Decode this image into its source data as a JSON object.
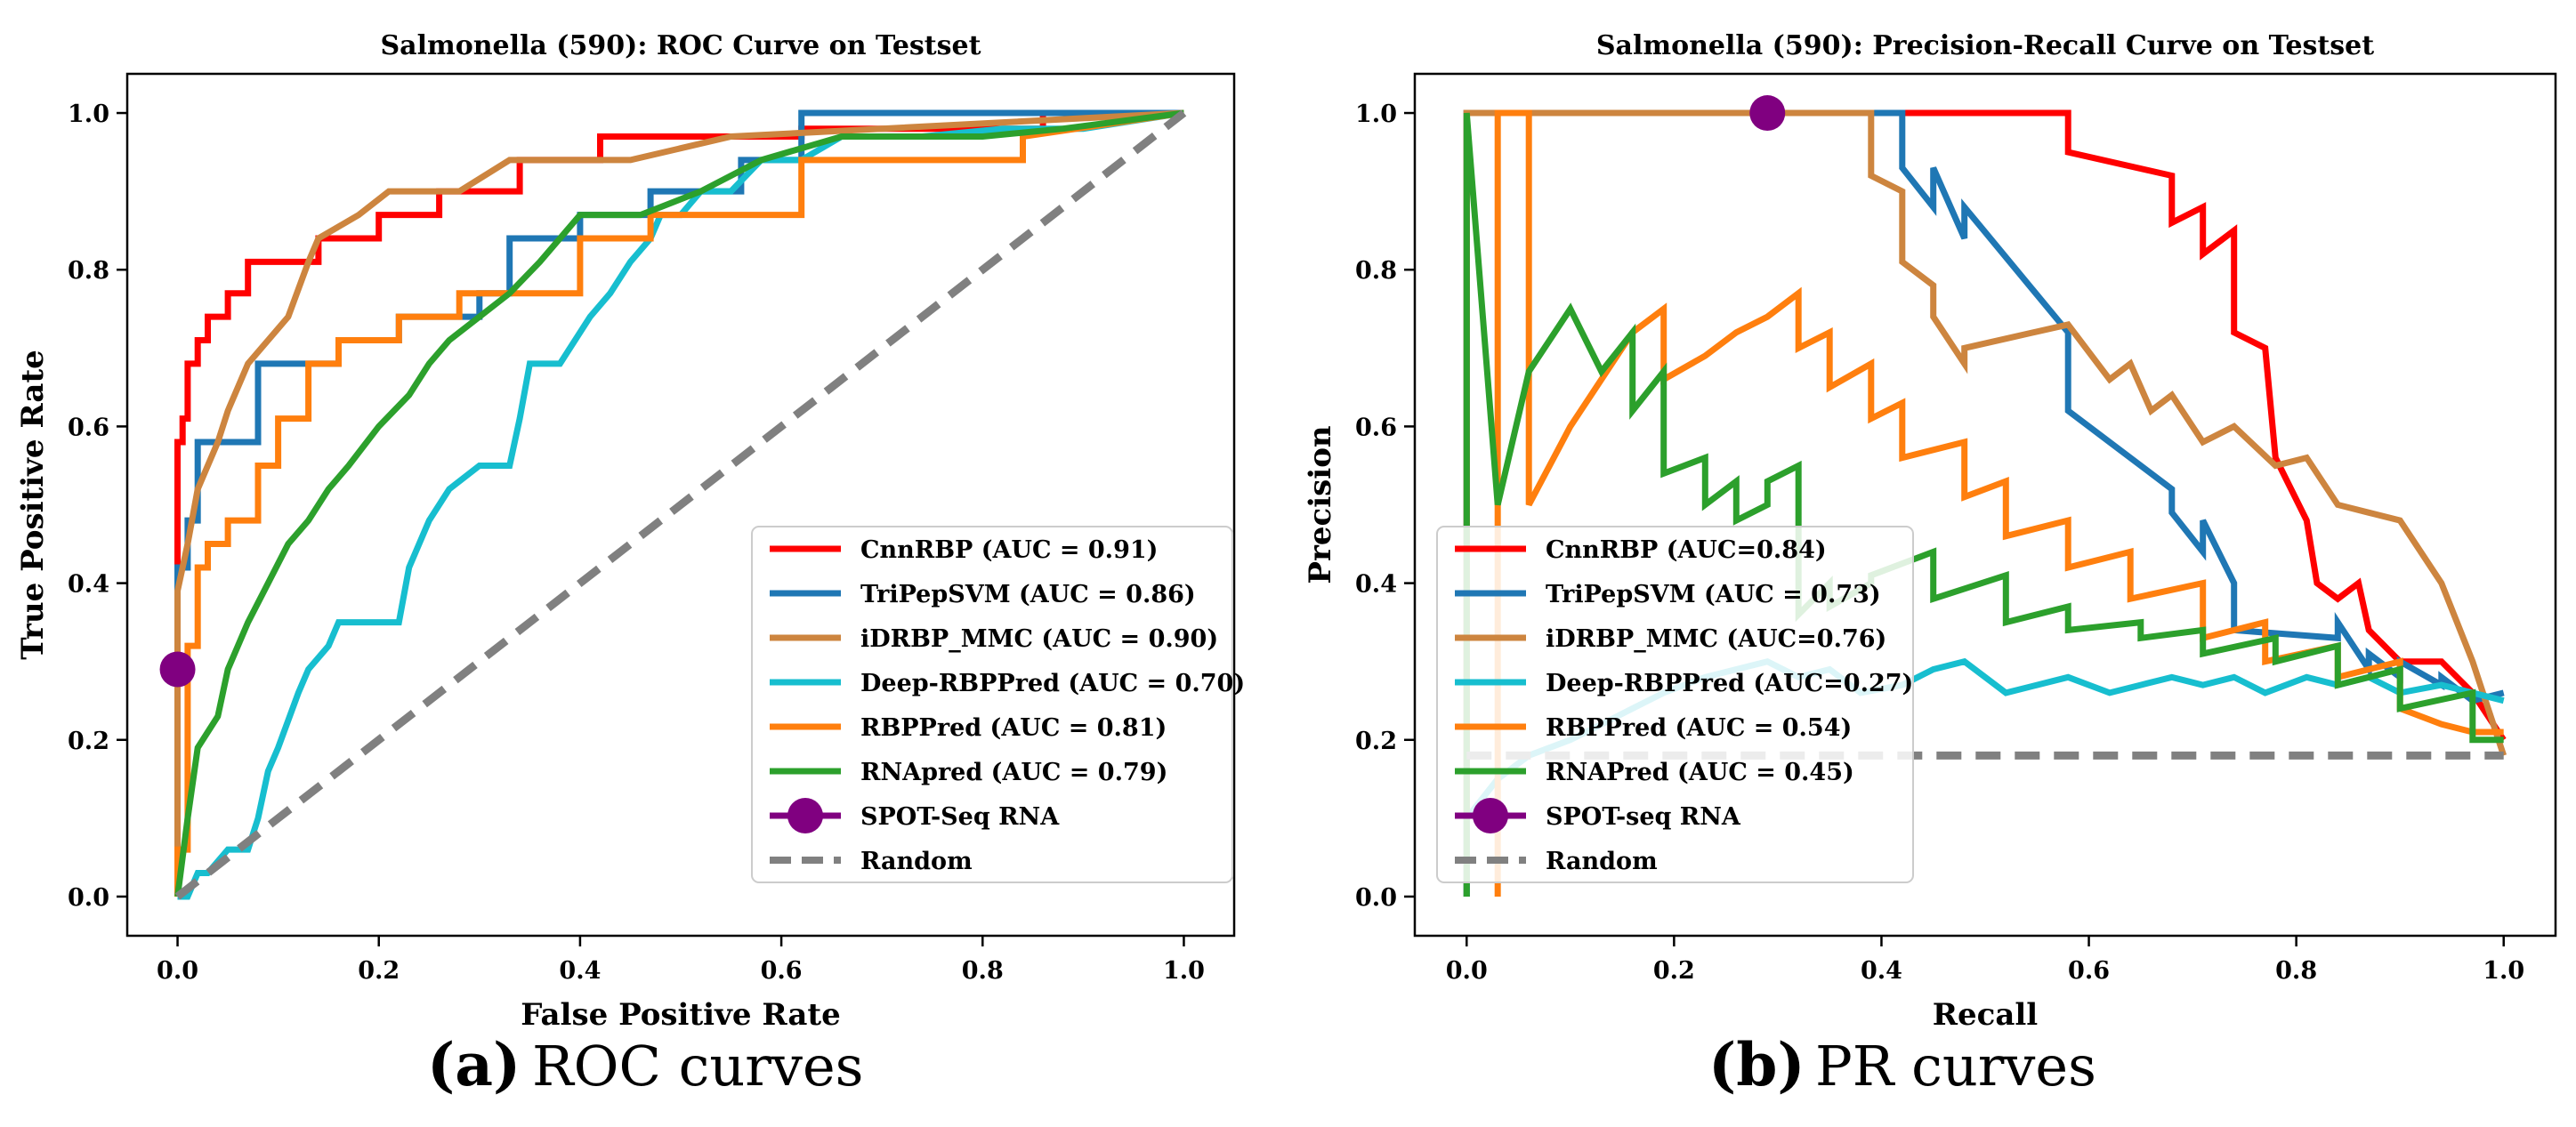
{
  "chart_data": [
    {
      "type": "line",
      "title": "Salmonella (590): ROC Curve on Testset",
      "xlabel": "False Positive Rate",
      "ylabel": "True Positive Rate",
      "xlim": [
        -0.05,
        1.05
      ],
      "ylim": [
        -0.05,
        1.05
      ],
      "xticks": [
        "0.0",
        "0.2",
        "0.4",
        "0.6",
        "0.8",
        "1.0"
      ],
      "yticks": [
        "0.0",
        "0.2",
        "0.4",
        "0.6",
        "0.8",
        "1.0"
      ],
      "legend_position": "lower-right",
      "series": [
        {
          "name": "CnnRBP (AUC = 0.91)",
          "color": "#ff0000",
          "style": "step",
          "x": [
            0,
            0,
            0.005,
            0.005,
            0.01,
            0.01,
            0.02,
            0.02,
            0.03,
            0.03,
            0.05,
            0.05,
            0.07,
            0.07,
            0.14,
            0.14,
            0.2,
            0.2,
            0.26,
            0.26,
            0.34,
            0.34,
            0.42,
            0.42,
            0.62,
            0.62,
            0.86,
            0.86,
            1.0
          ],
          "y": [
            0,
            0.58,
            0.58,
            0.61,
            0.61,
            0.68,
            0.68,
            0.71,
            0.71,
            0.74,
            0.74,
            0.77,
            0.77,
            0.81,
            0.81,
            0.84,
            0.84,
            0.87,
            0.87,
            0.9,
            0.9,
            0.94,
            0.94,
            0.97,
            0.97,
            0.98,
            0.98,
            1.0,
            1.0
          ]
        },
        {
          "name": "TriPepSVM (AUC = 0.86)",
          "color": "#1f77b4",
          "style": "step",
          "x": [
            0,
            0,
            0.01,
            0.01,
            0.02,
            0.02,
            0.08,
            0.08,
            0.16,
            0.16,
            0.22,
            0.22,
            0.3,
            0.3,
            0.33,
            0.33,
            0.4,
            0.4,
            0.47,
            0.47,
            0.56,
            0.56,
            0.62,
            0.62,
            1.0
          ],
          "y": [
            0,
            0.42,
            0.42,
            0.48,
            0.48,
            0.58,
            0.58,
            0.68,
            0.68,
            0.71,
            0.71,
            0.74,
            0.74,
            0.77,
            0.77,
            0.84,
            0.84,
            0.87,
            0.87,
            0.9,
            0.9,
            0.94,
            0.94,
            1.0,
            1.0
          ]
        },
        {
          "name": "iDRBP_MMC (AUC = 0.90)",
          "color": "#cd853f",
          "style": "line",
          "x": [
            0,
            0,
            0.01,
            0.02,
            0.04,
            0.05,
            0.07,
            0.09,
            0.11,
            0.13,
            0.14,
            0.18,
            0.21,
            0.28,
            0.33,
            0.45,
            0.55,
            0.7,
            1.0
          ],
          "y": [
            0,
            0.39,
            0.45,
            0.52,
            0.58,
            0.62,
            0.68,
            0.71,
            0.74,
            0.81,
            0.84,
            0.87,
            0.9,
            0.9,
            0.94,
            0.94,
            0.97,
            0.98,
            1.0
          ]
        },
        {
          "name": "Deep-RBPPred (AUC = 0.70)",
          "color": "#17becf",
          "style": "line",
          "x": [
            0,
            0.01,
            0.02,
            0.03,
            0.05,
            0.07,
            0.08,
            0.09,
            0.1,
            0.12,
            0.13,
            0.15,
            0.16,
            0.18,
            0.22,
            0.23,
            0.25,
            0.27,
            0.3,
            0.33,
            0.34,
            0.35,
            0.38,
            0.41,
            0.43,
            0.45,
            0.47,
            0.48,
            0.5,
            0.52,
            0.55,
            0.58,
            0.62,
            0.66,
            0.74,
            0.82,
            0.9,
            1.0
          ],
          "y": [
            0,
            0.0,
            0.03,
            0.03,
            0.06,
            0.06,
            0.1,
            0.16,
            0.19,
            0.26,
            0.29,
            0.32,
            0.35,
            0.35,
            0.35,
            0.42,
            0.48,
            0.52,
            0.55,
            0.55,
            0.61,
            0.68,
            0.68,
            0.74,
            0.77,
            0.81,
            0.84,
            0.87,
            0.87,
            0.9,
            0.9,
            0.94,
            0.94,
            0.97,
            0.97,
            0.98,
            0.98,
            1.0
          ]
        },
        {
          "name": "RBPPred (AUC = 0.81)",
          "color": "#ff7f0e",
          "style": "step",
          "x": [
            0,
            0,
            0.01,
            0.01,
            0.02,
            0.02,
            0.03,
            0.03,
            0.05,
            0.05,
            0.08,
            0.08,
            0.1,
            0.1,
            0.13,
            0.13,
            0.16,
            0.16,
            0.22,
            0.22,
            0.28,
            0.28,
            0.4,
            0.4,
            0.47,
            0.47,
            0.62,
            0.62,
            0.84,
            0.84,
            1.0
          ],
          "y": [
            0,
            0.06,
            0.06,
            0.32,
            0.32,
            0.42,
            0.42,
            0.45,
            0.45,
            0.48,
            0.48,
            0.55,
            0.55,
            0.61,
            0.61,
            0.68,
            0.68,
            0.71,
            0.71,
            0.74,
            0.74,
            0.77,
            0.77,
            0.84,
            0.84,
            0.87,
            0.87,
            0.94,
            0.94,
            0.97,
            1.0
          ]
        },
        {
          "name": "RNApred (AUC = 0.79)",
          "color": "#2ca02c",
          "style": "line",
          "x": [
            0,
            0.01,
            0.02,
            0.04,
            0.05,
            0.07,
            0.09,
            0.11,
            0.13,
            0.15,
            0.17,
            0.2,
            0.23,
            0.25,
            0.27,
            0.3,
            0.33,
            0.36,
            0.38,
            0.4,
            0.46,
            0.52,
            0.58,
            0.66,
            0.8,
            0.88,
            1.0
          ],
          "y": [
            0,
            0.1,
            0.19,
            0.23,
            0.29,
            0.35,
            0.4,
            0.45,
            0.48,
            0.52,
            0.55,
            0.6,
            0.64,
            0.68,
            0.71,
            0.74,
            0.77,
            0.81,
            0.84,
            0.87,
            0.87,
            0.9,
            0.94,
            0.97,
            0.97,
            0.98,
            1.0
          ]
        },
        {
          "name": "SPOT-Seq RNA",
          "color": "#800080",
          "style": "marker",
          "x": [
            0.0
          ],
          "y": [
            0.29
          ]
        },
        {
          "name": "Random",
          "color": "#808080",
          "style": "dashed",
          "x": [
            0,
            1
          ],
          "y": [
            0,
            1
          ]
        }
      ]
    },
    {
      "type": "line",
      "title": "Salmonella (590): Precision-Recall Curve on Testset",
      "xlabel": "Recall",
      "ylabel": "Precision",
      "xlim": [
        -0.05,
        1.05
      ],
      "ylim": [
        -0.05,
        1.05
      ],
      "xticks": [
        "0.0",
        "0.2",
        "0.4",
        "0.6",
        "0.8",
        "1.0"
      ],
      "yticks": [
        "0.0",
        "0.2",
        "0.4",
        "0.6",
        "0.8",
        "1.0"
      ],
      "legend_position": "lower-left",
      "series": [
        {
          "name": "CnnRBP (AUC=0.84)",
          "color": "#ff0000",
          "style": "line",
          "x": [
            0.0,
            0.0,
            0.58,
            0.58,
            0.68,
            0.68,
            0.71,
            0.71,
            0.74,
            0.74,
            0.77,
            0.78,
            0.81,
            0.82,
            0.84,
            0.86,
            0.87,
            0.9,
            0.94,
            0.97,
            1.0
          ],
          "y": [
            0.0,
            1.0,
            1.0,
            0.95,
            0.92,
            0.86,
            0.88,
            0.82,
            0.85,
            0.72,
            0.7,
            0.56,
            0.48,
            0.4,
            0.38,
            0.4,
            0.34,
            0.3,
            0.3,
            0.26,
            0.2
          ]
        },
        {
          "name": "TriPepSVM (AUC = 0.73)",
          "color": "#1f77b4",
          "style": "line",
          "x": [
            0.0,
            0.0,
            0.42,
            0.42,
            0.45,
            0.45,
            0.48,
            0.48,
            0.58,
            0.58,
            0.68,
            0.68,
            0.71,
            0.71,
            0.74,
            0.74,
            0.84,
            0.84,
            0.87,
            0.87,
            0.9,
            0.9,
            0.94,
            0.94,
            0.97,
            1.0
          ],
          "y": [
            0.0,
            1.0,
            1.0,
            0.93,
            0.88,
            0.93,
            0.84,
            0.88,
            0.72,
            0.62,
            0.52,
            0.49,
            0.44,
            0.48,
            0.4,
            0.34,
            0.33,
            0.35,
            0.29,
            0.31,
            0.28,
            0.3,
            0.27,
            0.28,
            0.25,
            0.26
          ]
        },
        {
          "name": "iDRBP_MMC (AUC=0.76)",
          "color": "#cd853f",
          "style": "line",
          "x": [
            0.0,
            0.0,
            0.39,
            0.39,
            0.42,
            0.42,
            0.45,
            0.45,
            0.48,
            0.48,
            0.58,
            0.62,
            0.64,
            0.66,
            0.68,
            0.71,
            0.74,
            0.78,
            0.81,
            0.84,
            0.87,
            0.9,
            0.94,
            0.97,
            1.0
          ],
          "y": [
            0.0,
            1.0,
            1.0,
            0.92,
            0.9,
            0.81,
            0.78,
            0.74,
            0.68,
            0.7,
            0.73,
            0.66,
            0.68,
            0.62,
            0.64,
            0.58,
            0.6,
            0.55,
            0.56,
            0.5,
            0.49,
            0.48,
            0.4,
            0.3,
            0.18
          ]
        },
        {
          "name": "Deep-RBPPred (AUC=0.27)",
          "color": "#17becf",
          "style": "line",
          "x": [
            0.0,
            0.0,
            0.03,
            0.06,
            0.1,
            0.13,
            0.16,
            0.19,
            0.23,
            0.26,
            0.29,
            0.32,
            0.35,
            0.38,
            0.42,
            0.45,
            0.48,
            0.52,
            0.55,
            0.58,
            0.62,
            0.65,
            0.68,
            0.71,
            0.74,
            0.77,
            0.81,
            0.84,
            0.87,
            0.9,
            0.94,
            0.97,
            1.0
          ],
          "y": [
            0.0,
            0.1,
            0.15,
            0.18,
            0.2,
            0.22,
            0.24,
            0.26,
            0.28,
            0.29,
            0.3,
            0.28,
            0.29,
            0.26,
            0.27,
            0.29,
            0.3,
            0.26,
            0.27,
            0.28,
            0.26,
            0.27,
            0.28,
            0.27,
            0.28,
            0.26,
            0.28,
            0.27,
            0.28,
            0.26,
            0.27,
            0.26,
            0.25
          ]
        },
        {
          "name": "RBPPred (AUC = 0.54)",
          "color": "#ff7f0e",
          "style": "line",
          "x": [
            0.03,
            0.03,
            0.06,
            0.06,
            0.08,
            0.1,
            0.12,
            0.14,
            0.16,
            0.19,
            0.19,
            0.23,
            0.26,
            0.29,
            0.32,
            0.32,
            0.35,
            0.35,
            0.39,
            0.39,
            0.42,
            0.42,
            0.48,
            0.48,
            0.52,
            0.52,
            0.58,
            0.58,
            0.64,
            0.64,
            0.71,
            0.71,
            0.77,
            0.77,
            0.84,
            0.84,
            0.9,
            0.9,
            0.94,
            0.97,
            1.0
          ],
          "y": [
            0.0,
            1.0,
            1.0,
            0.5,
            0.55,
            0.6,
            0.64,
            0.68,
            0.72,
            0.75,
            0.66,
            0.69,
            0.72,
            0.74,
            0.77,
            0.7,
            0.72,
            0.65,
            0.68,
            0.61,
            0.63,
            0.56,
            0.58,
            0.51,
            0.53,
            0.46,
            0.48,
            0.42,
            0.44,
            0.38,
            0.4,
            0.33,
            0.35,
            0.3,
            0.32,
            0.28,
            0.3,
            0.24,
            0.22,
            0.21,
            0.21
          ]
        },
        {
          "name": "RNAPred (AUC = 0.45)",
          "color": "#2ca02c",
          "style": "line",
          "x": [
            0.0,
            0.0,
            0.03,
            0.06,
            0.1,
            0.13,
            0.16,
            0.16,
            0.19,
            0.19,
            0.23,
            0.23,
            0.26,
            0.26,
            0.29,
            0.29,
            0.32,
            0.32,
            0.35,
            0.35,
            0.39,
            0.39,
            0.45,
            0.45,
            0.52,
            0.52,
            0.58,
            0.58,
            0.65,
            0.65,
            0.71,
            0.71,
            0.78,
            0.78,
            0.84,
            0.84,
            0.9,
            0.9,
            0.97,
            0.97,
            1.0
          ],
          "y": [
            0.0,
            1.0,
            0.5,
            0.67,
            0.75,
            0.67,
            0.72,
            0.62,
            0.67,
            0.54,
            0.56,
            0.5,
            0.53,
            0.48,
            0.5,
            0.53,
            0.55,
            0.36,
            0.4,
            0.37,
            0.4,
            0.41,
            0.44,
            0.38,
            0.41,
            0.35,
            0.37,
            0.34,
            0.35,
            0.33,
            0.34,
            0.31,
            0.33,
            0.3,
            0.32,
            0.27,
            0.29,
            0.24,
            0.26,
            0.2,
            0.2
          ]
        },
        {
          "name": "SPOT-seq RNA",
          "color": "#800080",
          "style": "marker",
          "x": [
            0.29
          ],
          "y": [
            1.0
          ]
        },
        {
          "name": "Random",
          "color": "#808080",
          "style": "dashed",
          "x": [
            0,
            1
          ],
          "y": [
            0.18,
            0.18
          ]
        }
      ]
    }
  ],
  "captions": [
    {
      "letter": "(a)",
      "text": "ROC curves"
    },
    {
      "letter": "(b)",
      "text": "PR curves"
    }
  ]
}
